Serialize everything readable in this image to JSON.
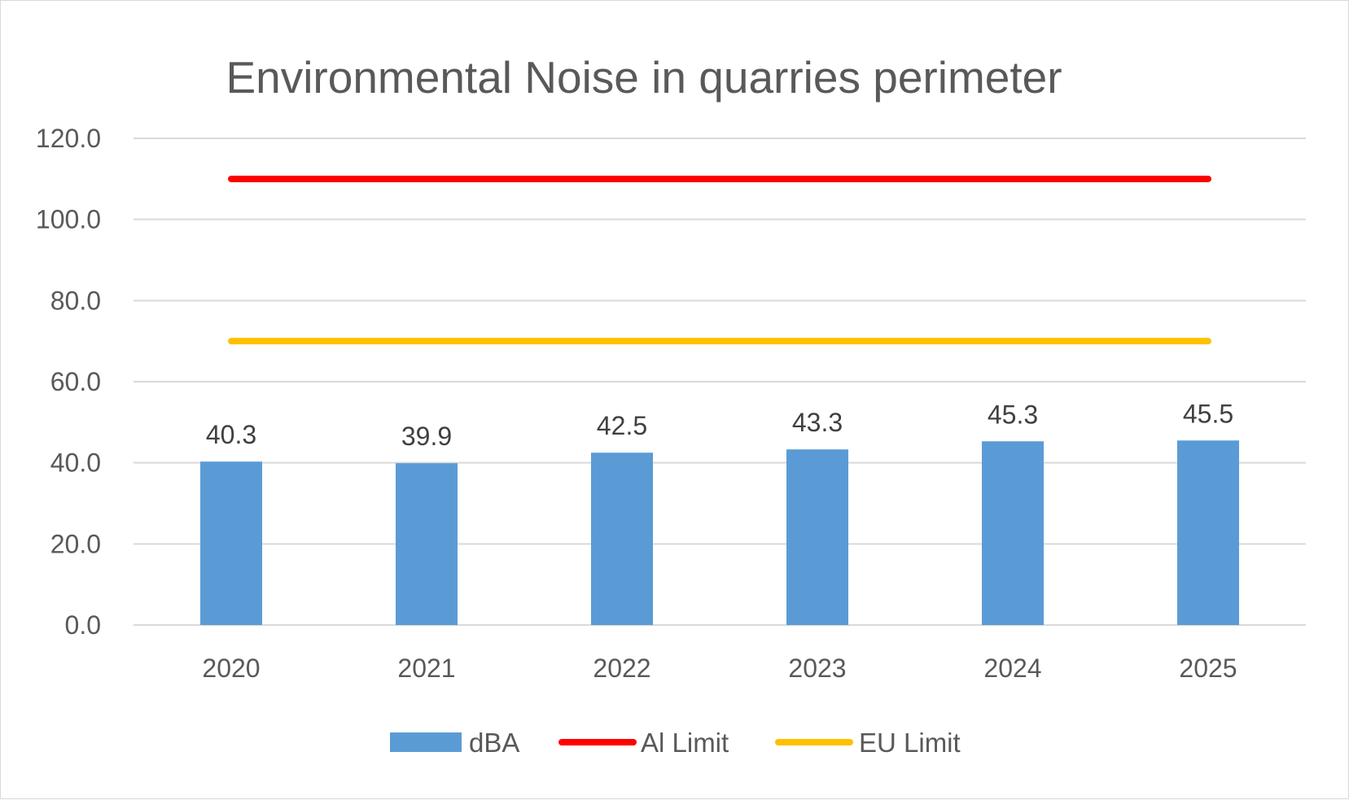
{
  "chart_data": {
    "type": "bar",
    "title": "Environmental Noise in quarries perimeter",
    "categories": [
      "2020",
      "2021",
      "2022",
      "2023",
      "2024",
      "2025"
    ],
    "series": [
      {
        "name": "dBA",
        "type": "bar",
        "values": [
          40.3,
          39.9,
          42.5,
          43.3,
          45.3,
          45.5
        ],
        "color": "#5b9bd5",
        "data_labels": [
          "40.3",
          "39.9",
          "42.5",
          "43.3",
          "45.3",
          "45.5"
        ]
      },
      {
        "name": "Al Limit",
        "type": "line",
        "values": [
          110,
          110,
          110,
          110,
          110,
          110
        ],
        "color": "#ff0000"
      },
      {
        "name": "EU Limit",
        "type": "line",
        "values": [
          70,
          70,
          70,
          70,
          70,
          70
        ],
        "color": "#ffc000"
      }
    ],
    "y_ticks": [
      "0.0",
      "20.0",
      "40.0",
      "60.0",
      "80.0",
      "100.0",
      "120.0"
    ],
    "ylim": [
      0,
      120
    ],
    "grid": true,
    "legend_position": "bottom",
    "gridline_color": "#d9d9d9",
    "text_color": "#595959"
  }
}
